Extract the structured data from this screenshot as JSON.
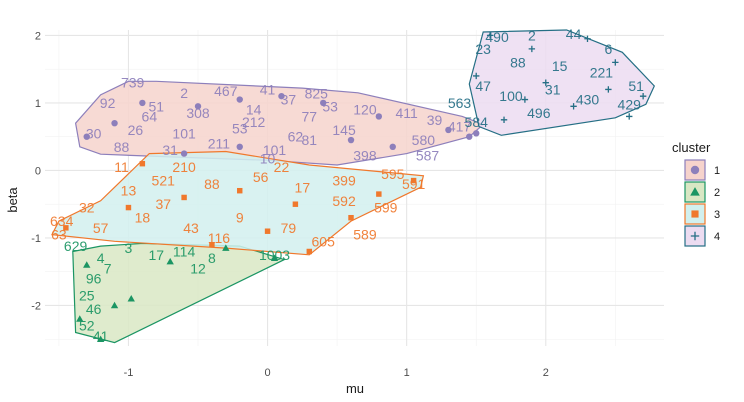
{
  "chart_data": {
    "type": "scatter",
    "title": "",
    "xlabel": "mu",
    "ylabel": "beta",
    "xlim": [
      -1.6,
      2.85
    ],
    "ylim": [
      -2.6,
      2.08
    ],
    "x_ticks": [
      -1,
      0,
      1,
      2
    ],
    "y_ticks": [
      -2,
      -1,
      0,
      1,
      2
    ],
    "grid": true,
    "legend": {
      "title": "cluster",
      "position": "right",
      "entries": [
        "1",
        "2",
        "3",
        "4"
      ]
    },
    "series": [
      {
        "name": "1",
        "color": "#8d7fbb",
        "fill": "#f6d3cc",
        "shape": "circle",
        "hull": [
          [
            -1.35,
            0.35
          ],
          [
            -1.38,
            0.7
          ],
          [
            -1.2,
            1.12
          ],
          [
            -1.0,
            1.32
          ],
          [
            -0.8,
            1.32
          ],
          [
            0.25,
            1.22
          ],
          [
            0.65,
            1.15
          ],
          [
            1.4,
            0.8
          ],
          [
            1.55,
            0.68
          ],
          [
            1.45,
            0.5
          ],
          [
            1.0,
            0.25
          ],
          [
            0.5,
            0.08
          ],
          [
            0.0,
            0.15
          ],
          [
            -0.7,
            0.2
          ],
          [
            -1.2,
            0.24
          ]
        ],
        "labels": [
          {
            "x": -0.97,
            "y": 1.3,
            "t": "739"
          },
          {
            "x": -1.15,
            "y": 1.0,
            "t": "92"
          },
          {
            "x": -0.6,
            "y": 1.15,
            "t": "2"
          },
          {
            "x": -0.3,
            "y": 1.18,
            "t": "467"
          },
          {
            "x": 0.0,
            "y": 1.2,
            "t": "41"
          },
          {
            "x": 0.35,
            "y": 1.14,
            "t": "825"
          },
          {
            "x": 0.15,
            "y": 1.05,
            "t": "37"
          },
          {
            "x": -0.8,
            "y": 0.95,
            "t": "51"
          },
          {
            "x": -0.5,
            "y": 0.85,
            "t": "308"
          },
          {
            "x": -0.1,
            "y": 0.9,
            "t": "14"
          },
          {
            "x": 0.3,
            "y": 0.8,
            "t": "77"
          },
          {
            "x": 0.7,
            "y": 0.9,
            "t": "120"
          },
          {
            "x": 1.0,
            "y": 0.85,
            "t": "411"
          },
          {
            "x": 1.2,
            "y": 0.75,
            "t": "39"
          },
          {
            "x": 1.38,
            "y": 0.65,
            "t": "417"
          },
          {
            "x": -1.25,
            "y": 0.55,
            "t": "30"
          },
          {
            "x": -0.95,
            "y": 0.6,
            "t": "26"
          },
          {
            "x": -0.6,
            "y": 0.55,
            "t": "101"
          },
          {
            "x": -0.2,
            "y": 0.62,
            "t": "53"
          },
          {
            "x": 0.2,
            "y": 0.5,
            "t": "62"
          },
          {
            "x": 0.55,
            "y": 0.6,
            "t": "145"
          },
          {
            "x": -1.05,
            "y": 0.35,
            "t": "88"
          },
          {
            "x": -0.7,
            "y": 0.3,
            "t": "31"
          },
          {
            "x": -0.35,
            "y": 0.4,
            "t": "211"
          },
          {
            "x": 0.05,
            "y": 0.3,
            "t": "101"
          },
          {
            "x": 0.3,
            "y": 0.45,
            "t": "81"
          },
          {
            "x": 0.0,
            "y": 0.18,
            "t": "10"
          },
          {
            "x": 0.7,
            "y": 0.22,
            "t": "398"
          },
          {
            "x": 1.12,
            "y": 0.45,
            "t": "580"
          },
          {
            "x": 1.15,
            "y": 0.22,
            "t": "587"
          },
          {
            "x": -0.85,
            "y": 0.8,
            "t": "64"
          },
          {
            "x": -0.1,
            "y": 0.72,
            "t": "212"
          },
          {
            "x": 0.45,
            "y": 0.95,
            "t": "53"
          }
        ],
        "points": [
          {
            "x": -1.3,
            "y": 0.5
          },
          {
            "x": -1.1,
            "y": 0.7
          },
          {
            "x": -0.9,
            "y": 1.0
          },
          {
            "x": -0.5,
            "y": 0.95
          },
          {
            "x": -0.2,
            "y": 1.05
          },
          {
            "x": 0.1,
            "y": 1.1
          },
          {
            "x": 0.4,
            "y": 1.0
          },
          {
            "x": 0.8,
            "y": 0.8
          },
          {
            "x": 1.3,
            "y": 0.6
          },
          {
            "x": 1.5,
            "y": 0.55
          },
          {
            "x": 1.45,
            "y": 0.5
          },
          {
            "x": 0.9,
            "y": 0.35
          },
          {
            "x": -0.6,
            "y": 0.25
          },
          {
            "x": -0.2,
            "y": 0.35
          },
          {
            "x": 0.6,
            "y": 0.45
          }
        ]
      },
      {
        "name": "2",
        "color": "#1b9563",
        "fill": "#d9e7c4",
        "shape": "triangle",
        "hull": [
          [
            -1.4,
            -1.2
          ],
          [
            -1.38,
            -2.4
          ],
          [
            -1.1,
            -2.55
          ],
          [
            0.12,
            -1.32
          ],
          [
            -0.2,
            -1.12
          ],
          [
            -0.9,
            -1.08
          ],
          [
            -1.2,
            -1.12
          ]
        ],
        "labels": [
          {
            "x": -1.38,
            "y": -1.12,
            "t": "629"
          },
          {
            "x": -1.2,
            "y": -1.3,
            "t": "4"
          },
          {
            "x": -1.0,
            "y": -1.15,
            "t": "3"
          },
          {
            "x": -0.8,
            "y": -1.25,
            "t": "17"
          },
          {
            "x": -0.6,
            "y": -1.2,
            "t": "114"
          },
          {
            "x": -0.4,
            "y": -1.3,
            "t": "8"
          },
          {
            "x": 0.05,
            "y": -1.25,
            "t": "1003"
          },
          {
            "x": -1.25,
            "y": -1.6,
            "t": "96"
          },
          {
            "x": -1.3,
            "y": -1.85,
            "t": "25"
          },
          {
            "x": -1.25,
            "y": -2.05,
            "t": "46"
          },
          {
            "x": -1.3,
            "y": -2.3,
            "t": "52"
          },
          {
            "x": -1.2,
            "y": -2.45,
            "t": "41"
          },
          {
            "x": -1.15,
            "y": -1.45,
            "t": "7"
          },
          {
            "x": -0.5,
            "y": -1.45,
            "t": "12"
          }
        ],
        "points": [
          {
            "x": -0.98,
            "y": -1.9
          },
          {
            "x": -1.3,
            "y": -1.4
          },
          {
            "x": -1.1,
            "y": -2.0
          },
          {
            "x": -1.2,
            "y": -2.5
          },
          {
            "x": -0.7,
            "y": -1.35
          },
          {
            "x": -0.3,
            "y": -1.15
          },
          {
            "x": 0.05,
            "y": -1.3
          },
          {
            "x": -1.35,
            "y": -2.2
          }
        ]
      },
      {
        "name": "3",
        "color": "#f0782c",
        "fill": "#d2f0ee",
        "shape": "square",
        "hull": [
          [
            -1.55,
            -0.95
          ],
          [
            -1.5,
            -0.75
          ],
          [
            -1.2,
            -0.45
          ],
          [
            -0.85,
            0.25
          ],
          [
            -0.3,
            0.28
          ],
          [
            0.3,
            0.08
          ],
          [
            1.12,
            -0.08
          ],
          [
            1.1,
            -0.25
          ],
          [
            0.6,
            -0.75
          ],
          [
            0.3,
            -1.25
          ],
          [
            -0.3,
            -1.15
          ],
          [
            -1.1,
            -1.05
          ]
        ],
        "labels": [
          {
            "x": -1.5,
            "y": -0.95,
            "t": "63"
          },
          {
            "x": -1.48,
            "y": -0.75,
            "t": "634"
          },
          {
            "x": -1.3,
            "y": -0.55,
            "t": "32"
          },
          {
            "x": -1.0,
            "y": -0.3,
            "t": "13"
          },
          {
            "x": -0.75,
            "y": -0.15,
            "t": "521"
          },
          {
            "x": -0.4,
            "y": -0.2,
            "t": "88"
          },
          {
            "x": -0.05,
            "y": -0.1,
            "t": "56"
          },
          {
            "x": 0.25,
            "y": -0.25,
            "t": "17"
          },
          {
            "x": 0.55,
            "y": -0.45,
            "t": "592"
          },
          {
            "x": 0.85,
            "y": -0.55,
            "t": "599"
          },
          {
            "x": 1.05,
            "y": -0.2,
            "t": "591"
          },
          {
            "x": 0.9,
            "y": -0.05,
            "t": "595"
          },
          {
            "x": 0.55,
            "y": -0.15,
            "t": "399"
          },
          {
            "x": -1.2,
            "y": -0.85,
            "t": "57"
          },
          {
            "x": -0.9,
            "y": -0.7,
            "t": "18"
          },
          {
            "x": -0.55,
            "y": -0.85,
            "t": "43"
          },
          {
            "x": -0.2,
            "y": -0.7,
            "t": "9"
          },
          {
            "x": 0.15,
            "y": -0.85,
            "t": "79"
          },
          {
            "x": 0.4,
            "y": -1.05,
            "t": "605"
          },
          {
            "x": -0.35,
            "y": -1.0,
            "t": "116"
          },
          {
            "x": -0.6,
            "y": 0.05,
            "t": "210"
          },
          {
            "x": -1.05,
            "y": 0.05,
            "t": "11"
          },
          {
            "x": 0.1,
            "y": 0.05,
            "t": "22"
          },
          {
            "x": -0.75,
            "y": -0.5,
            "t": "37"
          },
          {
            "x": 0.7,
            "y": -0.95,
            "t": "589"
          }
        ],
        "points": [
          {
            "x": -1.45,
            "y": -0.85
          },
          {
            "x": -1.0,
            "y": -0.55
          },
          {
            "x": -0.6,
            "y": -0.4
          },
          {
            "x": -0.2,
            "y": -0.3
          },
          {
            "x": 0.2,
            "y": -0.5
          },
          {
            "x": 0.6,
            "y": -0.7
          },
          {
            "x": 0.3,
            "y": -1.2
          },
          {
            "x": -0.4,
            "y": -1.1
          },
          {
            "x": 1.05,
            "y": -0.15
          },
          {
            "x": 0.8,
            "y": -0.35
          },
          {
            "x": -0.9,
            "y": 0.1
          },
          {
            "x": 0.0,
            "y": -0.9
          }
        ]
      },
      {
        "name": "4",
        "color": "#256f85",
        "fill": "#ecdcf1",
        "shape": "plus",
        "hull": [
          [
            1.52,
            0.65
          ],
          [
            1.45,
            1.28
          ],
          [
            1.55,
            2.05
          ],
          [
            2.15,
            2.08
          ],
          [
            2.55,
            1.75
          ],
          [
            2.78,
            1.25
          ],
          [
            2.72,
            0.98
          ],
          [
            2.5,
            0.78
          ],
          [
            1.68,
            0.52
          ]
        ],
        "labels": [
          {
            "x": 1.65,
            "y": 1.98,
            "t": "490"
          },
          {
            "x": 1.9,
            "y": 2.0,
            "t": "2"
          },
          {
            "x": 2.2,
            "y": 2.02,
            "t": "44"
          },
          {
            "x": 2.45,
            "y": 1.8,
            "t": "6"
          },
          {
            "x": 1.55,
            "y": 1.8,
            "t": "23"
          },
          {
            "x": 1.8,
            "y": 1.6,
            "t": "88"
          },
          {
            "x": 2.1,
            "y": 1.55,
            "t": "15"
          },
          {
            "x": 2.4,
            "y": 1.45,
            "t": "221"
          },
          {
            "x": 2.65,
            "y": 1.25,
            "t": "51"
          },
          {
            "x": 1.55,
            "y": 1.25,
            "t": "47"
          },
          {
            "x": 1.75,
            "y": 1.1,
            "t": "100"
          },
          {
            "x": 2.05,
            "y": 1.2,
            "t": "31"
          },
          {
            "x": 2.3,
            "y": 1.05,
            "t": "430"
          },
          {
            "x": 2.6,
            "y": 0.98,
            "t": "429"
          },
          {
            "x": 1.38,
            "y": 1.0,
            "t": "563"
          },
          {
            "x": 1.5,
            "y": 0.72,
            "t": "584"
          },
          {
            "x": 1.95,
            "y": 0.85,
            "t": "496"
          }
        ],
        "points": [
          {
            "x": 1.6,
            "y": 2.0
          },
          {
            "x": 1.9,
            "y": 1.8
          },
          {
            "x": 2.3,
            "y": 1.95
          },
          {
            "x": 2.5,
            "y": 1.6
          },
          {
            "x": 1.5,
            "y": 1.4
          },
          {
            "x": 2.0,
            "y": 1.3
          },
          {
            "x": 2.7,
            "y": 1.1
          },
          {
            "x": 2.2,
            "y": 0.95
          },
          {
            "x": 1.7,
            "y": 0.75
          },
          {
            "x": 2.6,
            "y": 0.8
          },
          {
            "x": 1.85,
            "y": 1.05
          },
          {
            "x": 2.45,
            "y": 1.2
          }
        ]
      }
    ]
  }
}
